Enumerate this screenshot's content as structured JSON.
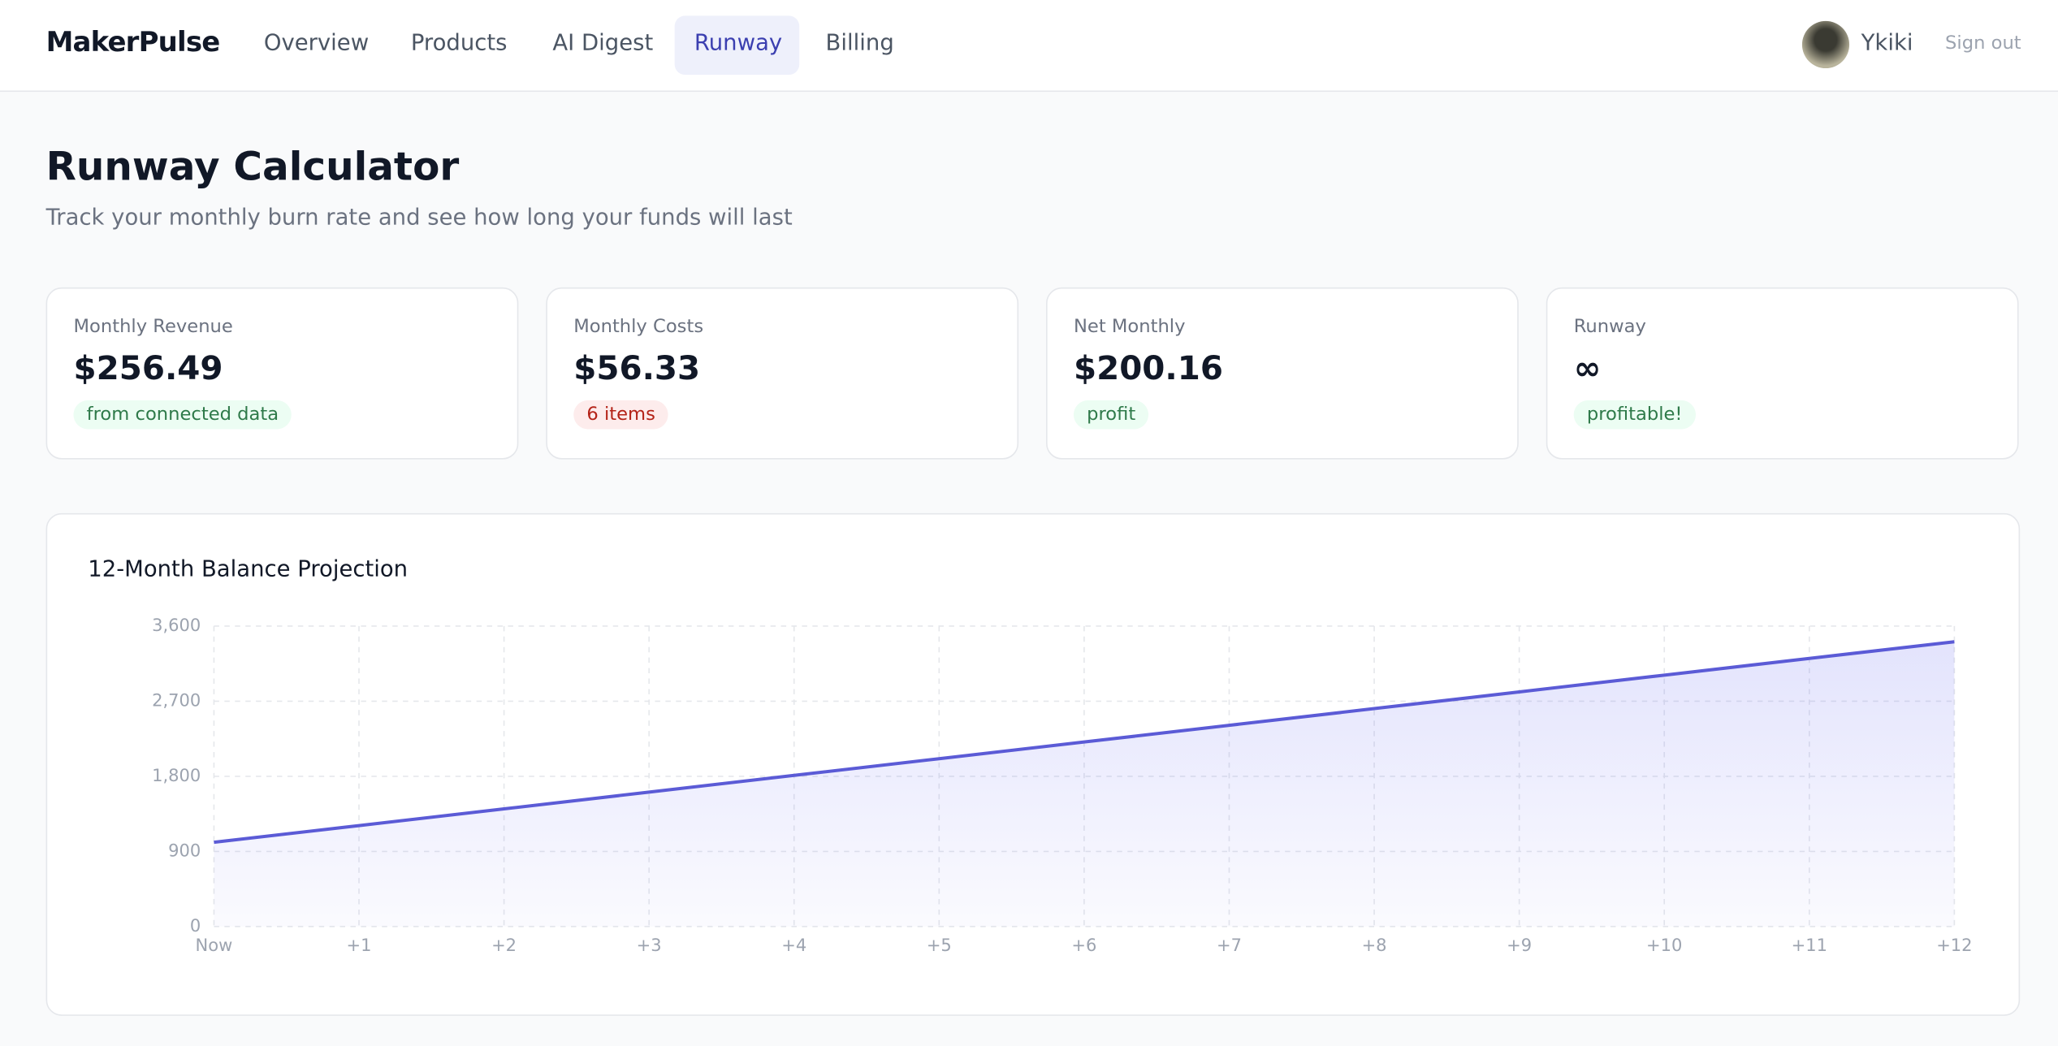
{
  "nav": {
    "logo": "MakerPulse",
    "links": [
      "Overview",
      "Products",
      "AI Digest",
      "Runway",
      "Billing"
    ],
    "user": "Ykiki",
    "signout": "Sign out"
  },
  "header": {
    "title": "Runway Calculator",
    "subtitle": "Track your monthly burn rate and see how long your funds will last"
  },
  "cards": [
    {
      "label": "Monthly Revenue",
      "value": "$256.49",
      "badge": "from connected data"
    },
    {
      "label": "Monthly Costs",
      "value": "$56.33",
      "badge": "6 items"
    },
    {
      "label": "Net Monthly",
      "value": "$200.16",
      "badge": "profit"
    },
    {
      "label": "Runway",
      "value": "∞",
      "badge": "profitable!"
    }
  ],
  "chart_data": {
    "type": "area",
    "title": "12-Month Balance Projection",
    "categories": [
      "Now",
      "+1",
      "+2",
      "+3",
      "+4",
      "+5",
      "+6",
      "+7",
      "+8",
      "+9",
      "+10",
      "+11",
      "+12"
    ],
    "series": [
      {
        "name": "Balance",
        "color": "#5b5bd6",
        "values": [
          1010,
          1210,
          1410,
          1611,
          1811,
          2011,
          2211,
          2411,
          2611,
          2811,
          3012,
          3212,
          3412
        ]
      }
    ],
    "ylim": [
      0,
      3600
    ],
    "yticks": [
      0,
      900,
      {
        "value": 1800,
        "label": "1,800"
      },
      {
        "value": 2700,
        "label": "2,700"
      },
      {
        "value": 3600,
        "label": "3,600"
      }
    ],
    "grid": true
  }
}
